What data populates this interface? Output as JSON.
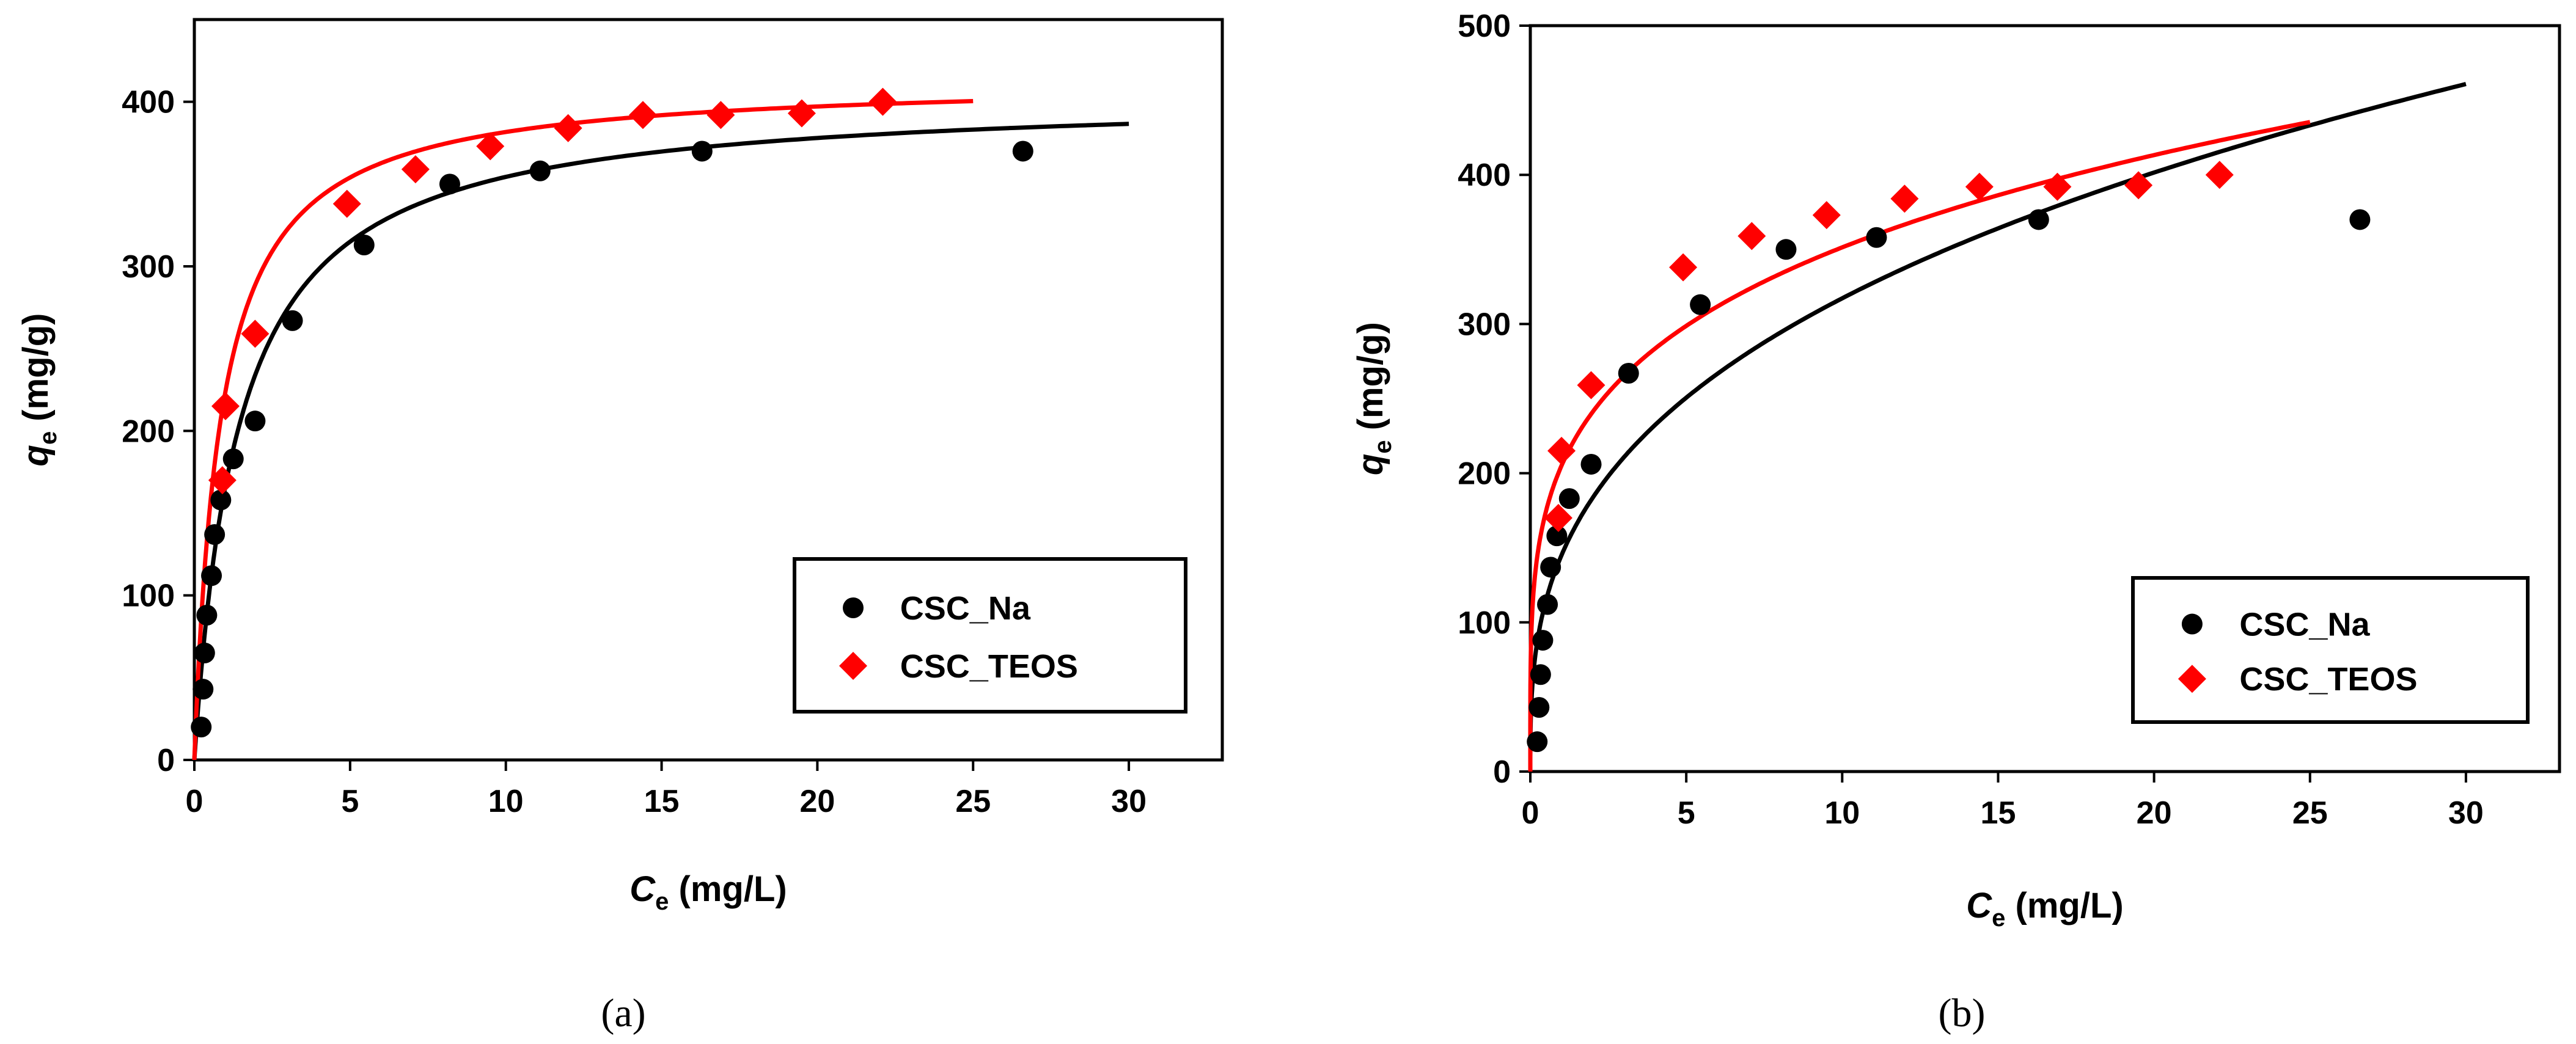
{
  "chart_data": [
    {
      "type": "scatter",
      "panel": "a",
      "caption": "(a)",
      "xlabel": {
        "main": "C",
        "sub": "e",
        "units": " (mg/L)"
      },
      "ylabel": {
        "main": "q",
        "sub": "e",
        "units": " (mg/g)"
      },
      "xlim": [
        0,
        33
      ],
      "ylim": [
        0,
        450
      ],
      "xticks": [
        0,
        5,
        10,
        15,
        20,
        25,
        30
      ],
      "yticks": [
        0,
        100,
        200,
        300,
        400
      ],
      "legend_position": "bottom-right",
      "series": [
        {
          "name": "CSC_Na",
          "color": "#000000",
          "marker": "circle",
          "points": [
            [
              0.22,
              20
            ],
            [
              0.28,
              43
            ],
            [
              0.33,
              65
            ],
            [
              0.4,
              88
            ],
            [
              0.55,
              112
            ],
            [
              0.65,
              137
            ],
            [
              0.85,
              158
            ],
            [
              1.25,
              183
            ],
            [
              1.95,
              206
            ],
            [
              3.15,
              267
            ],
            [
              5.45,
              313
            ],
            [
              8.2,
              350
            ],
            [
              11.1,
              358
            ],
            [
              16.3,
              370
            ],
            [
              26.6,
              370
            ]
          ],
          "fit": {
            "model": "langmuir",
            "qmax": 405,
            "K": 0.7,
            "xmax": 30
          }
        },
        {
          "name": "CSC_TEOS",
          "color": "#ff0000",
          "marker": "diamond",
          "points": [
            [
              0.9,
              170
            ],
            [
              1.0,
              215
            ],
            [
              1.95,
              259
            ],
            [
              4.9,
              338
            ],
            [
              7.1,
              359
            ],
            [
              9.5,
              373
            ],
            [
              12.0,
              384
            ],
            [
              14.4,
              392
            ],
            [
              16.9,
              392
            ],
            [
              19.5,
              393
            ],
            [
              22.1,
              400
            ]
          ],
          "fit": {
            "model": "langmuir",
            "qmax": 414,
            "K": 1.18,
            "xmax": 25
          }
        }
      ]
    },
    {
      "type": "scatter",
      "panel": "b",
      "caption": "(b)",
      "xlabel": {
        "main": "C",
        "sub": "e",
        "units": " (mg/L)"
      },
      "ylabel": {
        "main": "q",
        "sub": "e",
        "units": " (mg/g)"
      },
      "xlim": [
        0,
        33
      ],
      "ylim": [
        0,
        500
      ],
      "xticks": [
        0,
        5,
        10,
        15,
        20,
        25,
        30
      ],
      "yticks": [
        0,
        100,
        200,
        300,
        400,
        500
      ],
      "legend_position": "bottom-right",
      "series": [
        {
          "name": "CSC_Na",
          "color": "#000000",
          "marker": "circle",
          "points": [
            [
              0.22,
              20
            ],
            [
              0.28,
              43
            ],
            [
              0.33,
              65
            ],
            [
              0.4,
              88
            ],
            [
              0.55,
              112
            ],
            [
              0.65,
              137
            ],
            [
              0.85,
              158
            ],
            [
              1.25,
              183
            ],
            [
              1.95,
              206
            ],
            [
              3.15,
              267
            ],
            [
              5.45,
              313
            ],
            [
              8.2,
              350
            ],
            [
              11.1,
              358
            ],
            [
              16.3,
              370
            ],
            [
              26.6,
              370
            ]
          ],
          "fit": {
            "model": "freundlich",
            "Kf": 145,
            "n_inv": 0.34,
            "xmax": 30
          }
        },
        {
          "name": "CSC_TEOS",
          "color": "#ff0000",
          "marker": "diamond",
          "points": [
            [
              0.9,
              170
            ],
            [
              1.0,
              215
            ],
            [
              1.95,
              259
            ],
            [
              4.9,
              338
            ],
            [
              7.1,
              359
            ],
            [
              9.5,
              373
            ],
            [
              12.0,
              384
            ],
            [
              14.4,
              392
            ],
            [
              16.9,
              392
            ],
            [
              19.5,
              393
            ],
            [
              22.1,
              400
            ]
          ],
          "fit": {
            "model": "freundlich",
            "Kf": 205,
            "n_inv": 0.234,
            "xmax": 25
          }
        }
      ]
    }
  ]
}
